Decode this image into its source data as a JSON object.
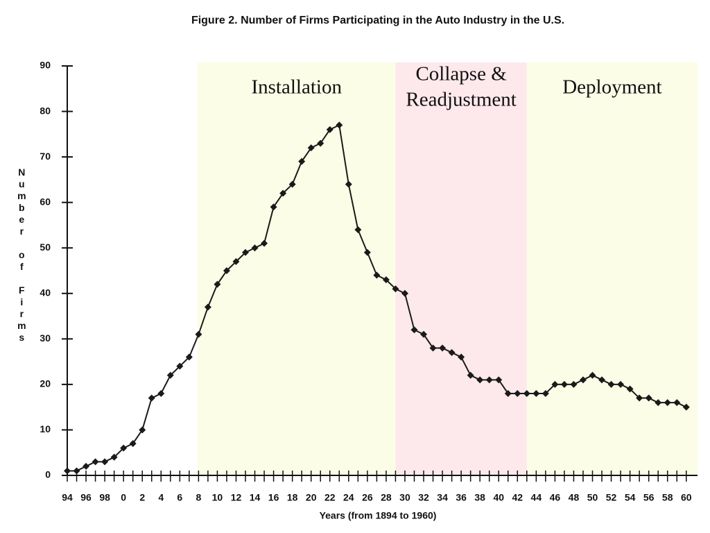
{
  "chart_data": {
    "type": "line",
    "title": "Figure 2.   Number of Firms Participating in the Auto Industry in the U.S.",
    "xlabel": "Years (from 1894 to 1960)",
    "ylabel": "Number of Firms",
    "x": [
      1894,
      1895,
      1896,
      1897,
      1898,
      1899,
      1900,
      1901,
      1902,
      1903,
      1904,
      1905,
      1906,
      1907,
      1908,
      1909,
      1910,
      1911,
      1912,
      1913,
      1914,
      1915,
      1916,
      1917,
      1918,
      1919,
      1920,
      1921,
      1922,
      1923,
      1924,
      1925,
      1926,
      1927,
      1928,
      1929,
      1930,
      1931,
      1932,
      1933,
      1934,
      1935,
      1936,
      1937,
      1938,
      1939,
      1940,
      1941,
      1942,
      1943,
      1944,
      1945,
      1946,
      1947,
      1948,
      1949,
      1950,
      1951,
      1952,
      1953,
      1954,
      1955,
      1956,
      1957,
      1958,
      1959,
      1960
    ],
    "values": [
      1,
      1,
      2,
      3,
      3,
      4,
      6,
      7,
      10,
      17,
      18,
      22,
      24,
      26,
      31,
      37,
      42,
      45,
      47,
      49,
      50,
      51,
      59,
      62,
      64,
      69,
      72,
      73,
      76,
      77,
      64,
      54,
      49,
      44,
      43,
      41,
      40,
      32,
      31,
      28,
      28,
      27,
      26,
      22,
      21,
      21,
      21,
      18,
      18,
      18,
      18,
      18,
      20,
      20,
      20,
      21,
      22,
      21,
      20,
      20,
      19,
      17,
      17,
      16,
      16,
      16,
      15
    ],
    "color": "#1a1a1a",
    "xlim": [
      1894,
      1961.2
    ],
    "ylim": [
      0,
      90
    ],
    "yticks": [
      0,
      10,
      20,
      30,
      40,
      50,
      60,
      70,
      80,
      90
    ],
    "xticks": [
      {
        "value": 1894,
        "label": "94"
      },
      {
        "value": 1896,
        "label": "96"
      },
      {
        "value": 1898,
        "label": "98"
      },
      {
        "value": 1900,
        "label": "0"
      },
      {
        "value": 1902,
        "label": "2"
      },
      {
        "value": 1904,
        "label": "4"
      },
      {
        "value": 1906,
        "label": "6"
      },
      {
        "value": 1908,
        "label": "8"
      },
      {
        "value": 1910,
        "label": "10"
      },
      {
        "value": 1912,
        "label": "12"
      },
      {
        "value": 1914,
        "label": "14"
      },
      {
        "value": 1916,
        "label": "16"
      },
      {
        "value": 1918,
        "label": "18"
      },
      {
        "value": 1920,
        "label": "20"
      },
      {
        "value": 1922,
        "label": "22"
      },
      {
        "value": 1924,
        "label": "24"
      },
      {
        "value": 1926,
        "label": "26"
      },
      {
        "value": 1928,
        "label": "28"
      },
      {
        "value": 1930,
        "label": "30"
      },
      {
        "value": 1932,
        "label": "32"
      },
      {
        "value": 1934,
        "label": "34"
      },
      {
        "value": 1936,
        "label": "36"
      },
      {
        "value": 1938,
        "label": "38"
      },
      {
        "value": 1940,
        "label": "40"
      },
      {
        "value": 1942,
        "label": "42"
      },
      {
        "value": 1944,
        "label": "44"
      },
      {
        "value": 1946,
        "label": "46"
      },
      {
        "value": 1948,
        "label": "48"
      },
      {
        "value": 1950,
        "label": "50"
      },
      {
        "value": 1952,
        "label": "52"
      },
      {
        "value": 1954,
        "label": "54"
      },
      {
        "value": 1956,
        "label": "56"
      },
      {
        "value": 1958,
        "label": "58"
      },
      {
        "value": 1960,
        "label": "60"
      }
    ],
    "xminorticks": [
      1895,
      1897,
      1899,
      1901,
      1903,
      1905,
      1907,
      1909,
      1911,
      1913,
      1915,
      1917,
      1919,
      1921,
      1923,
      1925,
      1927,
      1929,
      1931,
      1933,
      1935,
      1937,
      1939,
      1941,
      1943,
      1945,
      1947,
      1949,
      1951,
      1953,
      1955,
      1957,
      1959
    ],
    "phases": [
      {
        "label_lines": [
          "Installation"
        ],
        "start": 1907.9,
        "end": 1929,
        "color": "#fbfde6"
      },
      {
        "label_lines": [
          "Collapse &",
          "Readjustment"
        ],
        "start": 1929,
        "end": 1943,
        "color": "#fde8ec"
      },
      {
        "label_lines": [
          "Deployment"
        ],
        "start": 1943,
        "end": 1961.2,
        "color": "#fbfde6"
      }
    ]
  }
}
